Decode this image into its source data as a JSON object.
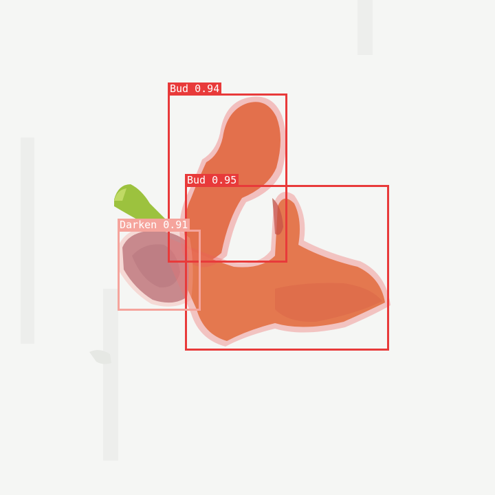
{
  "colors": {
    "bud": "#e83a3a",
    "darken": "#f5a49c",
    "background": "#f4f5f3"
  },
  "detections": [
    {
      "id": "bud-1",
      "label": "Bud 0.94",
      "class": "Bud",
      "confidence": 0.94
    },
    {
      "id": "bud-2",
      "label": "Bud 0.95",
      "class": "Bud",
      "confidence": 0.95
    },
    {
      "id": "darken-1",
      "label": "Darken 0.91",
      "class": "Darken",
      "confidence": 0.91
    }
  ]
}
